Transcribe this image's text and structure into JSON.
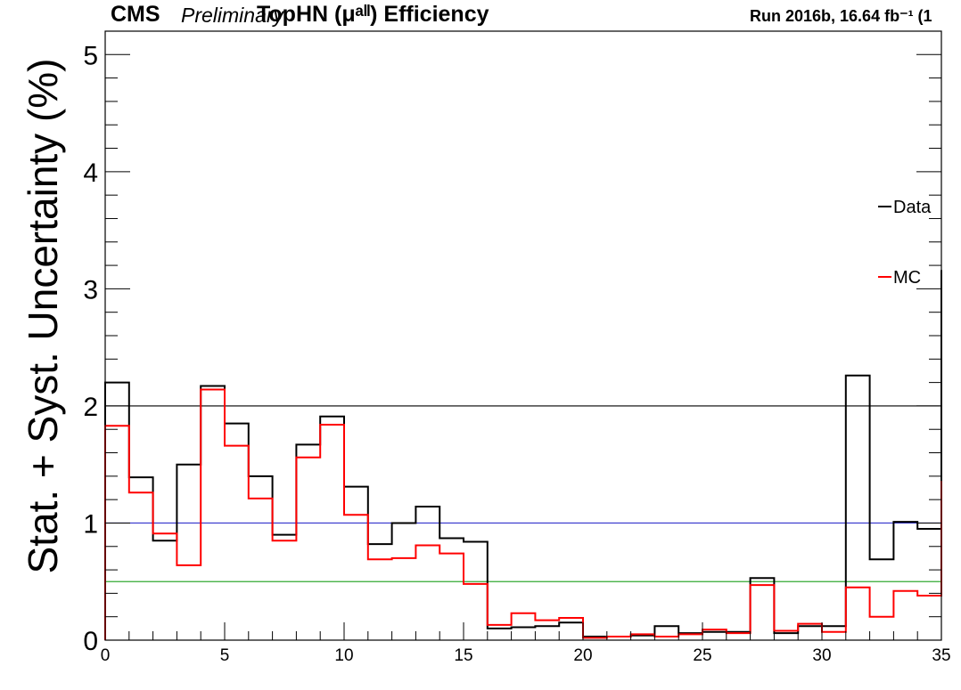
{
  "header": {
    "cms": "CMS",
    "preliminary": "Preliminary",
    "title": "TopHN (μᵃˡˡ) Efficiency",
    "run": "Run 2016b,  16.64 fb⁻¹  (1"
  },
  "chart_data": {
    "type": "line",
    "ylabel": "Stat. + Syst. Uncertainty (%)",
    "xlabel": "",
    "xlim": [
      0,
      35
    ],
    "ylim": [
      0,
      5.2
    ],
    "x_ticks": [
      0,
      5,
      10,
      15,
      20,
      25,
      30,
      35
    ],
    "y_ticks": [
      0,
      1,
      2,
      3,
      4,
      5
    ],
    "grid": false,
    "legend_position": "right",
    "bin_edges": [
      0,
      1,
      2,
      3,
      4,
      5,
      6,
      7,
      8,
      9,
      10,
      11,
      12,
      13,
      14,
      15,
      16,
      17,
      18,
      19,
      20,
      21,
      22,
      23,
      24,
      25,
      26,
      27,
      28,
      29,
      30,
      31,
      32,
      33,
      34,
      35
    ],
    "series": [
      {
        "name": "Data",
        "color": "#000000",
        "values": [
          2.2,
          1.39,
          0.85,
          1.5,
          2.17,
          1.85,
          1.4,
          0.9,
          1.67,
          1.91,
          1.31,
          0.82,
          1.0,
          1.14,
          0.87,
          0.84,
          0.1,
          0.11,
          0.12,
          0.15,
          0.03,
          0.03,
          0.04,
          0.12,
          0.06,
          0.07,
          0.07,
          0.53,
          0.06,
          0.12,
          0.12,
          2.26,
          0.69,
          1.01,
          0.95,
          3.16
        ]
      },
      {
        "name": "MC",
        "color": "#ff0000",
        "values": [
          1.83,
          1.26,
          0.91,
          0.64,
          2.14,
          1.66,
          1.21,
          0.85,
          1.56,
          1.84,
          1.07,
          0.69,
          0.7,
          0.81,
          0.74,
          0.48,
          0.13,
          0.23,
          0.17,
          0.19,
          0.02,
          0.03,
          0.05,
          0.03,
          0.05,
          0.09,
          0.06,
          0.47,
          0.08,
          0.14,
          0.07,
          0.45,
          0.2,
          0.42,
          0.38,
          1.36
        ]
      }
    ],
    "reference_lines": [
      {
        "y": 2.0,
        "color": "#000000"
      },
      {
        "y": 1.0,
        "color": "#3333cc"
      },
      {
        "y": 0.5,
        "color": "#33aa33"
      }
    ]
  }
}
